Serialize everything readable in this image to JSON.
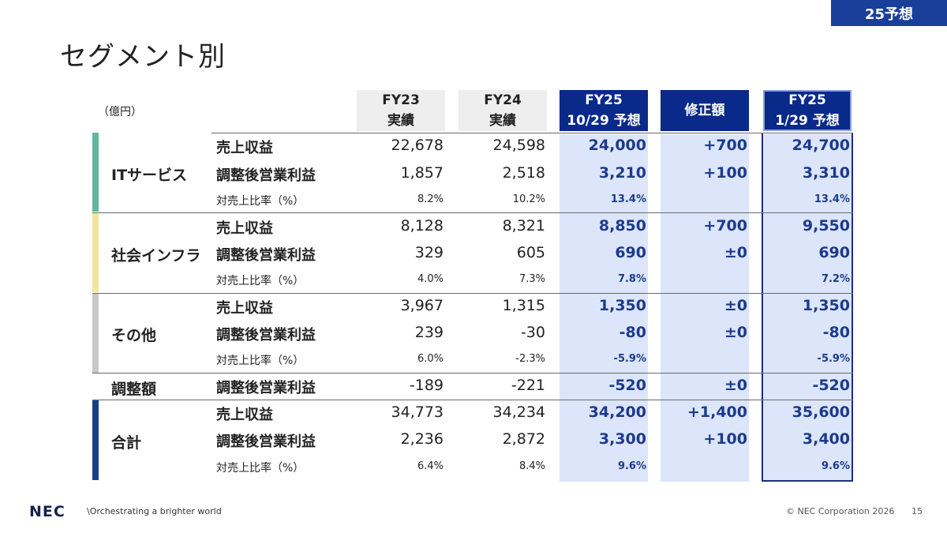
{
  "badge": "25予想",
  "title": "セグメント別",
  "unit": "（億円）",
  "headers": [
    {
      "line1": "FY23",
      "line2": "実績"
    },
    {
      "line1": "FY24",
      "line2": "実績"
    },
    {
      "line1": "FY25",
      "line2": "10/29 予想"
    },
    {
      "line1": "修正額",
      "line2": ""
    },
    {
      "line1": "FY25",
      "line2": "1/29 予想"
    }
  ],
  "segments": [
    {
      "name": "ITサービス",
      "color": "#5fb89e",
      "rows": [
        {
          "label": "売上収益",
          "values": [
            "22,678",
            "24,598",
            "24,000",
            "+700",
            "24,700"
          ]
        },
        {
          "label": "調整後営業利益",
          "values": [
            "1,857",
            "2,518",
            "3,210",
            "+100",
            "3,310"
          ]
        },
        {
          "label": "対売上比率（%）",
          "values": [
            "8.2%",
            "10.2%",
            "13.4%",
            "",
            "13.4%"
          ]
        }
      ]
    },
    {
      "name": "社会インフラ",
      "color": "#f2e69a",
      "rows": [
        {
          "label": "売上収益",
          "values": [
            "8,128",
            "8,321",
            "8,850",
            "+700",
            "9,550"
          ]
        },
        {
          "label": "調整後営業利益",
          "values": [
            "329",
            "605",
            "690",
            "±0",
            "690"
          ]
        },
        {
          "label": "対売上比率（%）",
          "values": [
            "4.0%",
            "7.3%",
            "7.8%",
            "",
            "7.2%"
          ]
        }
      ]
    },
    {
      "name": "その他",
      "color": "#c8c8c8",
      "rows": [
        {
          "label": "売上収益",
          "values": [
            "3,967",
            "1,315",
            "1,350",
            "±0",
            "1,350"
          ]
        },
        {
          "label": "調整後営業利益",
          "values": [
            "239",
            "-30",
            "-80",
            "±0",
            "-80"
          ]
        },
        {
          "label": "対売上比率（%）",
          "values": [
            "6.0%",
            "-2.3%",
            "-5.9%",
            "",
            "-5.9%"
          ]
        }
      ]
    },
    {
      "name": "調整額",
      "color": "",
      "rows": [
        {
          "label": "調整後営業利益",
          "values": [
            "-189",
            "-221",
            "-520",
            "±0",
            "-520"
          ]
        }
      ]
    },
    {
      "name": "合計",
      "color": "#1a3f8a",
      "rows": [
        {
          "label": "売上収益",
          "values": [
            "34,773",
            "34,234",
            "34,200",
            "+1,400",
            "35,600"
          ]
        },
        {
          "label": "調整後営業利益",
          "values": [
            "2,236",
            "2,872",
            "3,300",
            "+100",
            "3,400"
          ]
        },
        {
          "label": "対売上比率（%）",
          "values": [
            "6.4%",
            "8.4%",
            "9.6%",
            "",
            "9.6%"
          ]
        }
      ]
    }
  ],
  "footer": {
    "logo": "NEC",
    "tagline": "\\Orchestrating a brighter world",
    "copyright": "© NEC Corporation 2026",
    "page": "15"
  }
}
